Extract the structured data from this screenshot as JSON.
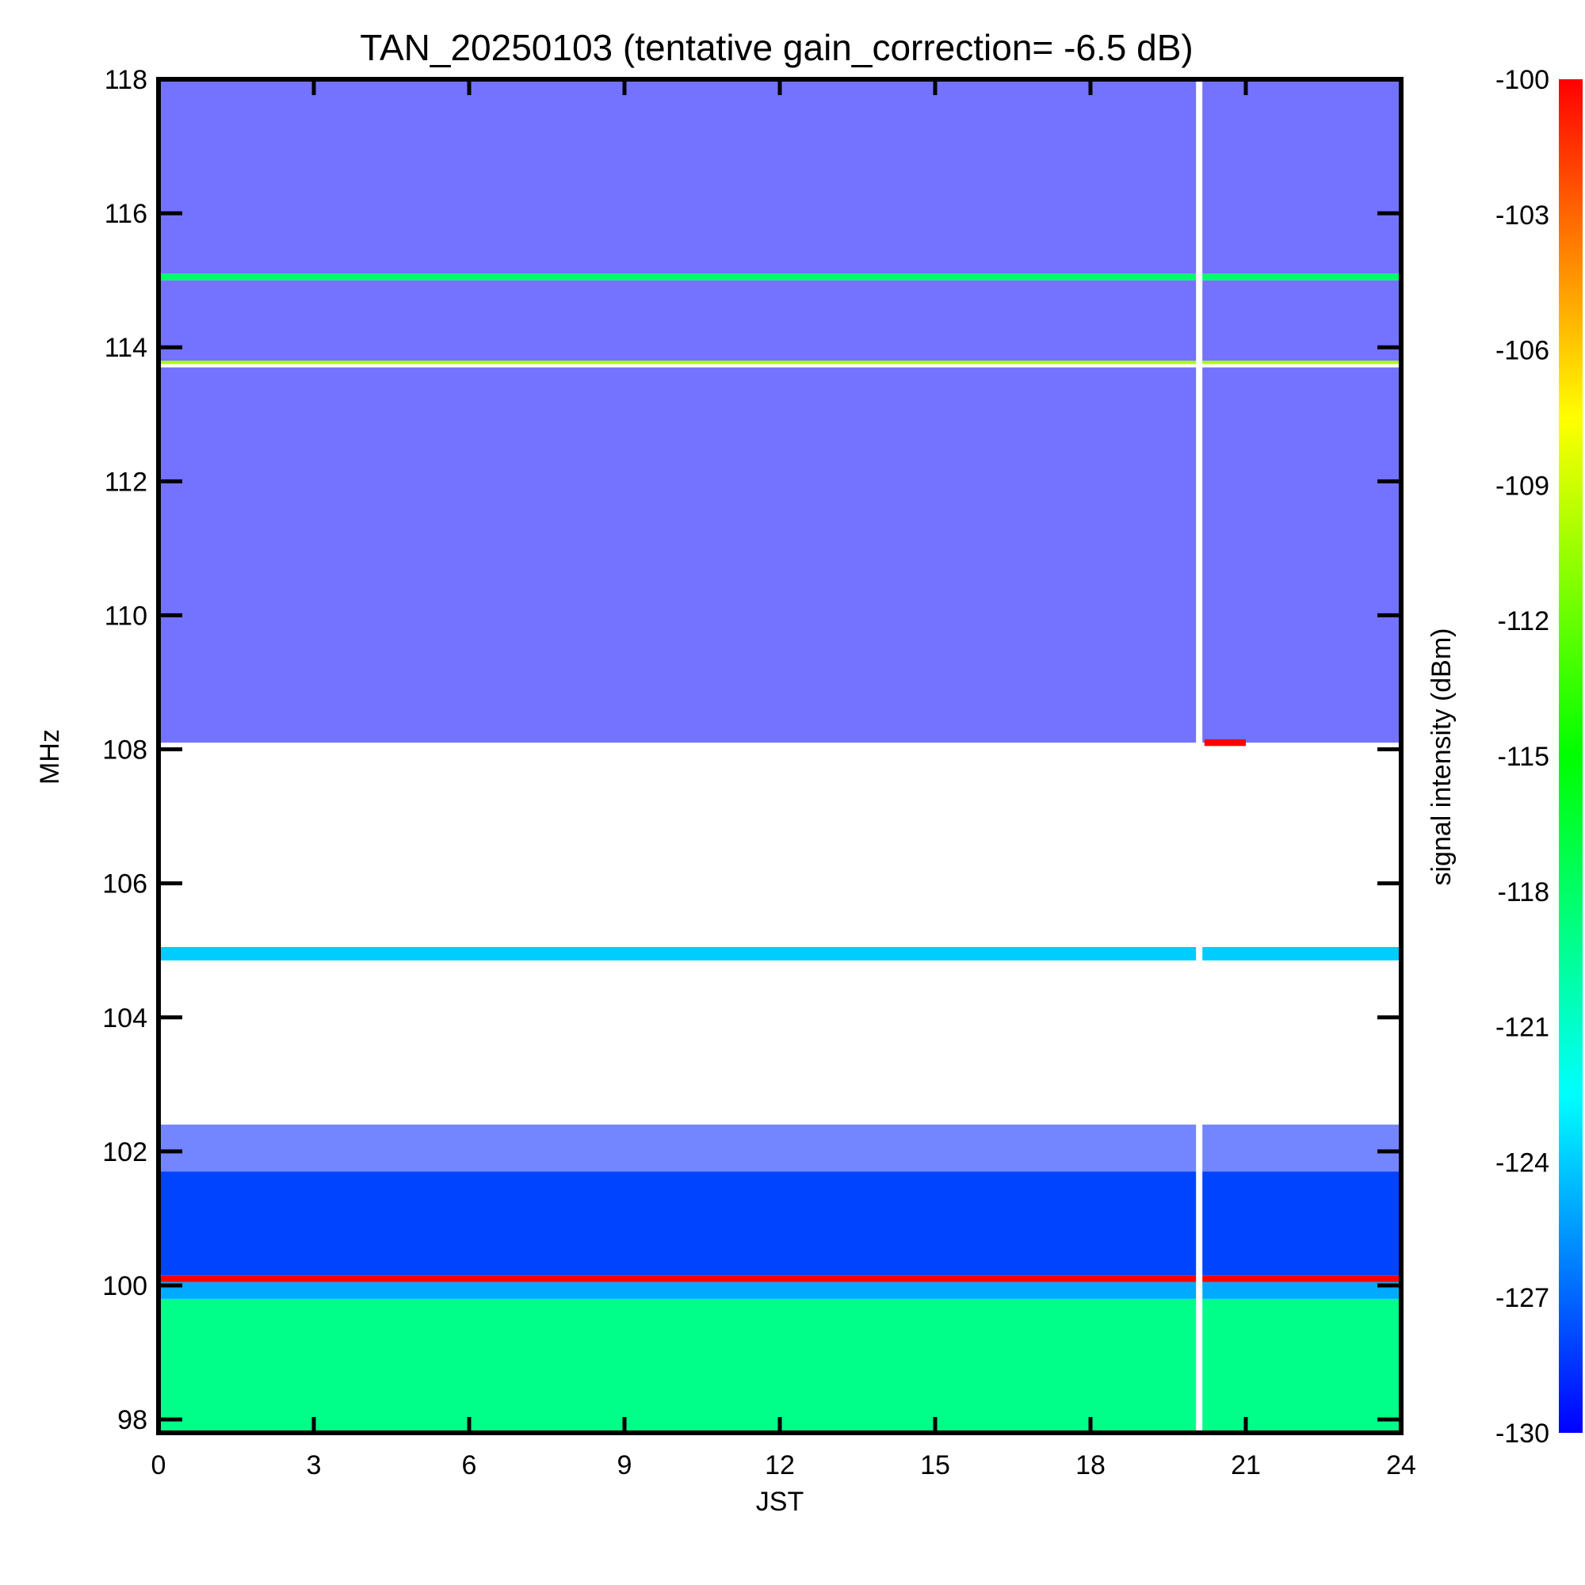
{
  "chart_data": {
    "type": "heatmap",
    "title": "TAN_20250103 (tentative gain_correction= -6.5 dB)",
    "xlabel": "JST",
    "ylabel": "MHz",
    "colorbar_label": "signal intensity (dBm)",
    "xlim": [
      0,
      24
    ],
    "ylim": [
      97.8,
      118
    ],
    "x_ticks": [
      0,
      3,
      6,
      9,
      12,
      15,
      18,
      21,
      24
    ],
    "y_ticks": [
      98,
      100,
      102,
      104,
      106,
      108,
      110,
      112,
      114,
      116,
      118
    ],
    "colorbar_range": [
      -130,
      -100
    ],
    "colorbar_ticks": [
      -100,
      -103,
      -106,
      -109,
      -112,
      -115,
      -118,
      -121,
      -124,
      -127,
      -130
    ],
    "colormap": [
      "#0000ff",
      "#00ffff",
      "#00ff00",
      "#ffff00",
      "#ff0000"
    ],
    "data_gap_jst": 20.1,
    "bands": [
      {
        "freq_range": [
          97.8,
          99.8
        ],
        "level_dbm": -119,
        "note": "green band"
      },
      {
        "freq_range": [
          99.8,
          100.05
        ],
        "level_dbm": -125,
        "note": "cyan band"
      },
      {
        "freq_range": [
          100.05,
          100.15
        ],
        "level_dbm": -100,
        "note": "red line"
      },
      {
        "freq_range": [
          100.15,
          101.7
        ],
        "level_dbm": -128,
        "note": "blue band"
      },
      {
        "freq_range": [
          101.7,
          102.4
        ],
        "level_dbm": -129,
        "note": "sparse blue"
      },
      {
        "freq_range": [
          104.85,
          105.05
        ],
        "level_dbm": -124,
        "note": "line near 105 MHz"
      },
      {
        "freq_range": [
          108.1,
          113.7
        ],
        "level_dbm": -130,
        "note": "sparse blue noise"
      },
      {
        "freq_range": [
          113.75,
          113.8
        ],
        "level_dbm": -110,
        "note": "yellow-green line"
      },
      {
        "freq_range": [
          113.8,
          115.0
        ],
        "level_dbm": -130,
        "note": "sparse blue noise"
      },
      {
        "freq_range": [
          115.0,
          115.1
        ],
        "level_dbm": -118,
        "note": "green line"
      },
      {
        "freq_range": [
          115.1,
          118.0
        ],
        "level_dbm": -130,
        "note": "sparse blue noise"
      },
      {
        "freq_range": [
          108.05,
          108.15
        ],
        "time_range": [
          20.2,
          21.0
        ],
        "level_dbm": -100,
        "note": "red segment"
      }
    ]
  }
}
